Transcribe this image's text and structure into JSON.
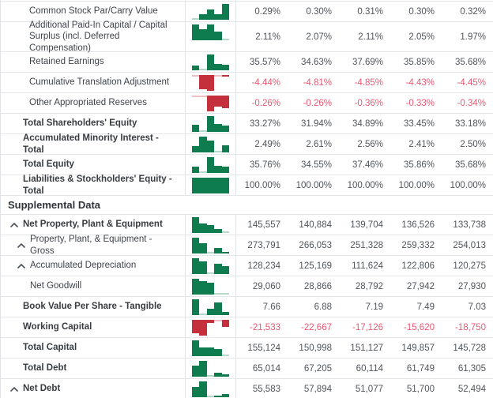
{
  "table": {
    "title": "financial-statement-percent-and-supplemental-table",
    "colors": {
      "positive_bar": "#0e7c4f",
      "negative_bar": "#c4313c",
      "negative_text": "#ea5872",
      "grid_line": "#e4e6e9"
    },
    "sections": [
      {
        "header": null,
        "rows": [
          {
            "label": "Common Stock Par/Carry Value",
            "bold": false,
            "indent": 1,
            "caret": false,
            "negative": false,
            "values": [
              "0.29%",
              "0.30%",
              "0.31%",
              "0.30%",
              "0.32%"
            ]
          },
          {
            "label": "Additional Paid-In Capital / Capital Surplus (incl. Deferred Compensation)",
            "bold": false,
            "indent": 1,
            "caret": false,
            "negative": false,
            "tall": true,
            "values": [
              "2.11%",
              "2.07%",
              "2.11%",
              "2.05%",
              "1.97%"
            ]
          },
          {
            "label": "Retained Earnings",
            "bold": false,
            "indent": 1,
            "caret": false,
            "negative": false,
            "values": [
              "35.57%",
              "34.63%",
              "37.69%",
              "35.85%",
              "35.68%"
            ]
          },
          {
            "label": "Cumulative Translation Adjustment",
            "bold": false,
            "indent": 1,
            "caret": false,
            "negative": true,
            "values": [
              "-4.44%",
              "-4.81%",
              "-4.85%",
              "-4.43%",
              "-4.45%"
            ]
          },
          {
            "label": "Other Appropriated Reserves",
            "bold": false,
            "indent": 1,
            "caret": false,
            "negative": true,
            "values": [
              "-0.26%",
              "-0.26%",
              "-0.36%",
              "-0.33%",
              "-0.34%"
            ]
          },
          {
            "label": "Total Shareholders' Equity",
            "bold": true,
            "indent": 0,
            "caret": false,
            "negative": false,
            "values": [
              "33.27%",
              "31.94%",
              "34.89%",
              "33.45%",
              "33.18%"
            ]
          },
          {
            "label": "Accumulated Minority Interest - Total",
            "bold": true,
            "indent": 0,
            "caret": false,
            "negative": false,
            "values": [
              "2.49%",
              "2.61%",
              "2.56%",
              "2.41%",
              "2.50%"
            ]
          },
          {
            "label": "Total Equity",
            "bold": true,
            "indent": 0,
            "caret": false,
            "negative": false,
            "values": [
              "35.76%",
              "34.55%",
              "37.46%",
              "35.86%",
              "35.68%"
            ]
          },
          {
            "label": "Liabilities & Stockholders' Equity - Total",
            "bold": true,
            "indent": 0,
            "caret": false,
            "negative": false,
            "values": [
              "100.00%",
              "100.00%",
              "100.00%",
              "100.00%",
              "100.00%"
            ]
          }
        ]
      },
      {
        "header": "Supplemental Data",
        "rows": [
          {
            "label": "Net Property, Plant & Equipment",
            "bold": true,
            "indent": 0,
            "caret": true,
            "negative": false,
            "values": [
              "145,557",
              "140,884",
              "139,704",
              "136,526",
              "133,738"
            ]
          },
          {
            "label": "Property, Plant, & Equipment - Gross",
            "bold": false,
            "indent": 1,
            "caret": true,
            "negative": false,
            "values": [
              "273,791",
              "266,053",
              "251,328",
              "259,332",
              "254,013"
            ]
          },
          {
            "label": "Accumulated Depreciation",
            "bold": false,
            "indent": 1,
            "caret": true,
            "negative": false,
            "values": [
              "128,234",
              "125,169",
              "111,624",
              "122,806",
              "120,275"
            ]
          },
          {
            "label": "Net Goodwill",
            "bold": false,
            "indent": 2,
            "caret": false,
            "negative": false,
            "values": [
              "29,060",
              "28,866",
              "28,792",
              "27,942",
              "27,930"
            ]
          },
          {
            "label": "Book Value Per Share - Tangible",
            "bold": true,
            "indent": 0,
            "caret": false,
            "negative": false,
            "values": [
              "7.66",
              "6.88",
              "7.19",
              "7.49",
              "7.03"
            ]
          },
          {
            "label": "Working Capital",
            "bold": true,
            "indent": 0,
            "caret": false,
            "negative": true,
            "values": [
              "-21,533",
              "-22,667",
              "-17,126",
              "-15,620",
              "-18,750"
            ]
          },
          {
            "label": "Total Capital",
            "bold": true,
            "indent": 0,
            "caret": false,
            "negative": false,
            "values": [
              "155,124",
              "150,998",
              "151,127",
              "149,857",
              "145,728"
            ]
          },
          {
            "label": "Total Debt",
            "bold": true,
            "indent": 0,
            "caret": false,
            "negative": false,
            "values": [
              "65,014",
              "67,205",
              "60,114",
              "61,749",
              "61,305"
            ]
          },
          {
            "label": "Net Debt",
            "bold": true,
            "indent": 0,
            "caret": true,
            "negative": false,
            "values": [
              "55,583",
              "57,894",
              "51,077",
              "51,700",
              "52,494"
            ]
          }
        ]
      }
    ]
  }
}
